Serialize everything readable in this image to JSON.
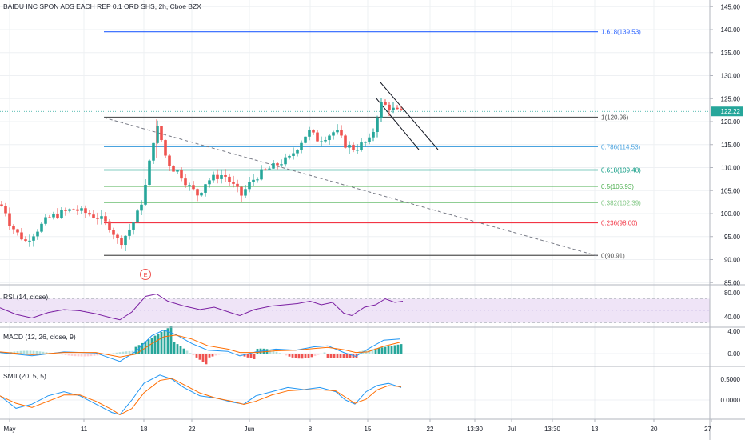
{
  "header": {
    "symbol_title": "BAIDU INC SPON ADS EACH REP 0.1 ORD SHS, 2h, Cboe BZX"
  },
  "main_pane": {
    "y_ticks": [
      "145.00",
      "140.00",
      "135.00",
      "130.00",
      "125.00",
      "120.00",
      "115.00",
      "110.00",
      "105.00",
      "100.00",
      "95.00",
      "90.00",
      "85.00"
    ],
    "y_tick_values": [
      145,
      140,
      135,
      130,
      125,
      120,
      115,
      110,
      105,
      100,
      95,
      90,
      85
    ],
    "last_price": "122.22",
    "last_price_value": 122.22,
    "earnings_marker": "E",
    "fib_levels": [
      {
        "value": 139.53,
        "label": "1.618(139.53)",
        "color": "#2962ff"
      },
      {
        "value": 120.96,
        "label": "1(120.96)",
        "color": "#555555"
      },
      {
        "value": 114.53,
        "label": "0.786(114.53)",
        "color": "#4aa3df"
      },
      {
        "value": 109.48,
        "label": "0.618(109.48)",
        "color": "#089981"
      },
      {
        "value": 105.93,
        "label": "0.5(105.93)",
        "color": "#4caf50"
      },
      {
        "value": 102.39,
        "label": "0.382(102.39)",
        "color": "#81c784"
      },
      {
        "value": 98.0,
        "label": "0.236(98.00)",
        "color": "#f23645"
      },
      {
        "value": 90.91,
        "label": "0(90.91)",
        "color": "#555555"
      }
    ]
  },
  "rsi_pane": {
    "label": "RSI (14, close)",
    "ticks": [
      "80.00",
      "40.00"
    ],
    "tick_values": [
      80,
      40
    ]
  },
  "macd_pane": {
    "label": "MACD (12, 26, close, 9)",
    "ticks": [
      "4.00",
      "0.00"
    ],
    "tick_values": [
      4,
      0
    ]
  },
  "smii_pane": {
    "label": "SMII (20, 5, 5)",
    "ticks": [
      "0.5000",
      "0.0000"
    ],
    "tick_values": [
      0.5,
      0
    ]
  },
  "time_axis": {
    "labels": [
      "May",
      "11",
      "18",
      "22",
      "Jun",
      "8",
      "15",
      "22",
      "13:30",
      "Jul",
      "13:30",
      "13",
      "20",
      "27"
    ]
  },
  "colors": {
    "up": "#26a69a",
    "down": "#ef5350",
    "rsi_line": "#7b1fa2",
    "macd_line": "#2196f3",
    "signal_line": "#ff6d00"
  }
}
